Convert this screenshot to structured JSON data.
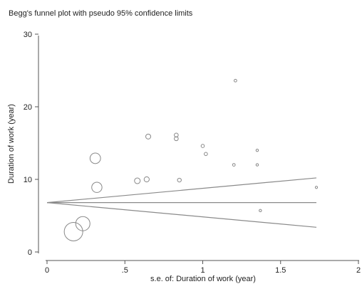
{
  "chart_data": {
    "type": "scatter",
    "title": "Begg's funnel plot with pseudo 95% confidence limits",
    "xlabel": "s.e. of: Duration of work (year)",
    "ylabel": "Duration of work (year)",
    "xlim": [
      0,
      2
    ],
    "ylim": [
      0,
      30
    ],
    "x_ticks": [
      {
        "value": 0,
        "label": "0"
      },
      {
        "value": 0.5,
        "label": ".5"
      },
      {
        "value": 1,
        "label": "1"
      },
      {
        "value": 1.5,
        "label": "1.5"
      },
      {
        "value": 2,
        "label": "2"
      }
    ],
    "y_ticks": [
      {
        "value": 0,
        "label": "0"
      },
      {
        "value": 10,
        "label": "10"
      },
      {
        "value": 20,
        "label": "20"
      },
      {
        "value": 30,
        "label": "30"
      }
    ],
    "grid": false,
    "pooled_estimate": 6.8,
    "funnel_limits": {
      "x_max": 1.73,
      "upper_end": 10.2,
      "lower_end": 3.4
    },
    "points": [
      {
        "x": 0.17,
        "y": 2.8
      },
      {
        "x": 0.23,
        "y": 3.9
      },
      {
        "x": 0.31,
        "y": 12.9
      },
      {
        "x": 0.32,
        "y": 8.9
      },
      {
        "x": 0.58,
        "y": 9.8
      },
      {
        "x": 0.64,
        "y": 10.0
      },
      {
        "x": 0.65,
        "y": 15.9
      },
      {
        "x": 0.83,
        "y": 16.1
      },
      {
        "x": 0.83,
        "y": 15.6
      },
      {
        "x": 0.85,
        "y": 9.9
      },
      {
        "x": 1.0,
        "y": 14.6
      },
      {
        "x": 1.02,
        "y": 13.5
      },
      {
        "x": 1.2,
        "y": 12.0
      },
      {
        "x": 1.21,
        "y": 23.6
      },
      {
        "x": 1.35,
        "y": 14.0
      },
      {
        "x": 1.35,
        "y": 12.0
      },
      {
        "x": 1.37,
        "y": 5.7
      },
      {
        "x": 1.73,
        "y": 8.9
      }
    ],
    "colors": {
      "axis": "#555555",
      "marker": "#888888",
      "line": "#8a8a8a"
    }
  }
}
